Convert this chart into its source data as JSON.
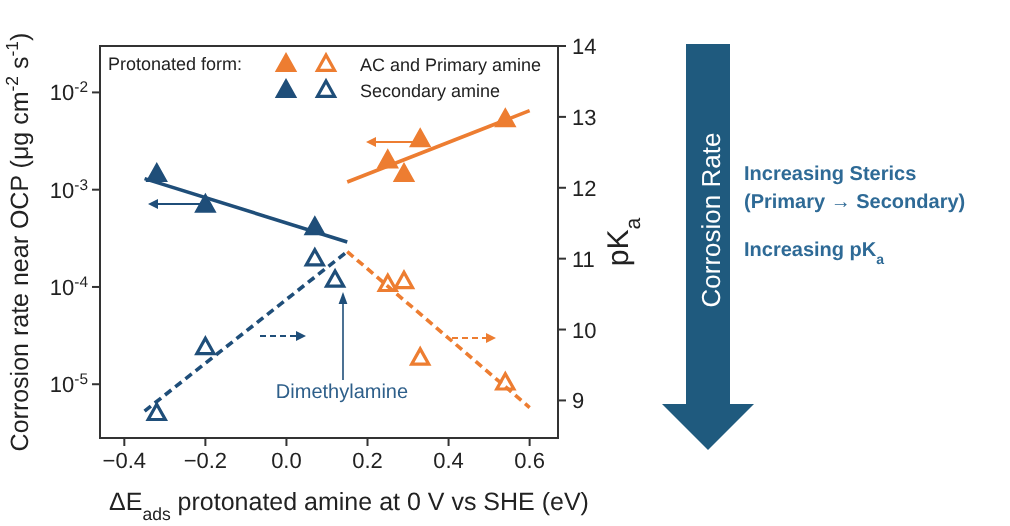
{
  "chart_data": {
    "type": "scatter",
    "xlabel": "ΔE$_{ads}$ protonated amine at 0 V vs SHE (eV)",
    "ylabel": "Corrosion rate near OCP (μg cm$^{-2}$ s$^{-1}$)",
    "y2label": "pK$_{a}$",
    "legend_title": "Protonated form:",
    "legend": "top",
    "log": "y",
    "xlim": [
      -0.46,
      0.67
    ],
    "xticks": [
      {
        "value": -0.4,
        "label": "−0.4"
      },
      {
        "value": -0.2,
        "label": "−0.2"
      },
      {
        "value": 0,
        "label": "0.0"
      },
      {
        "value": 0.2,
        "label": "0.2"
      },
      {
        "value": 0.4,
        "label": "0.4"
      },
      {
        "value": 0.6,
        "label": "0.6"
      }
    ],
    "ylim": [
      2.8e-06,
      0.03
    ],
    "yticks": [
      {
        "value": 1e-05,
        "label": "10$^{-5}$"
      },
      {
        "value": 0.0001,
        "label": "10$^{-4}$"
      },
      {
        "value": 0.001,
        "label": "10$^{-3}$"
      },
      {
        "value": 0.01,
        "label": "10$^{-2}$"
      }
    ],
    "y2lim": [
      8.47,
      14
    ],
    "y2ticks": [
      9,
      10,
      11,
      12,
      13,
      14
    ],
    "series": [
      {
        "color": "#ed7d31",
        "marker": "triangle",
        "x": [
          0.25,
          0.29,
          0.33,
          0.54
        ],
        "values": [
          0.002,
          0.00145,
          0.0033,
          0.0053
        ]
      },
      {
        "name": "AC and Primary amine",
        "color": "#ed7d31",
        "marker": "triangle-open",
        "axis": "y2",
        "x": [
          0.25,
          0.29,
          0.33,
          0.54
        ],
        "values": [
          10.64,
          10.68,
          9.6,
          9.25
        ]
      },
      {
        "color": "#1f4e79",
        "marker": "triangle",
        "x": [
          -0.32,
          -0.2,
          0.07
        ],
        "values": [
          0.00145,
          0.0007,
          0.00041
        ]
      },
      {
        "name": "Secondary amine",
        "color": "#1f4e79",
        "marker": "triangle-open",
        "axis": "y2",
        "x": [
          -0.32,
          -0.2,
          0.07,
          0.12
        ],
        "values": [
          8.82,
          9.75,
          11.0,
          10.7
        ]
      },
      {
        "type": "line",
        "color": "#1f4e79",
        "line_style": "solid",
        "x": [
          -0.35,
          0.15
        ],
        "values": [
          0.0013,
          0.00029
        ]
      },
      {
        "type": "line",
        "color": "#ed7d31",
        "line_style": "solid",
        "x": [
          0.15,
          0.6
        ],
        "values": [
          0.0012,
          0.0065
        ]
      },
      {
        "type": "line",
        "color": "#1f4e79",
        "line_style": "dashed",
        "axis": "y2",
        "x": [
          -0.35,
          0.15
        ],
        "values": [
          8.85,
          11.1
        ]
      },
      {
        "type": "line",
        "color": "#ed7d31",
        "line_style": "dashed",
        "axis": "y2",
        "x": [
          0.15,
          0.6
        ],
        "values": [
          11.1,
          8.9
        ]
      }
    ],
    "annotations": [
      "Dimethylamine",
      "Corrosion Rate",
      "Increasing Sterics",
      "(Primary → Secondary)",
      "Increasing pK$_{a}$"
    ]
  }
}
